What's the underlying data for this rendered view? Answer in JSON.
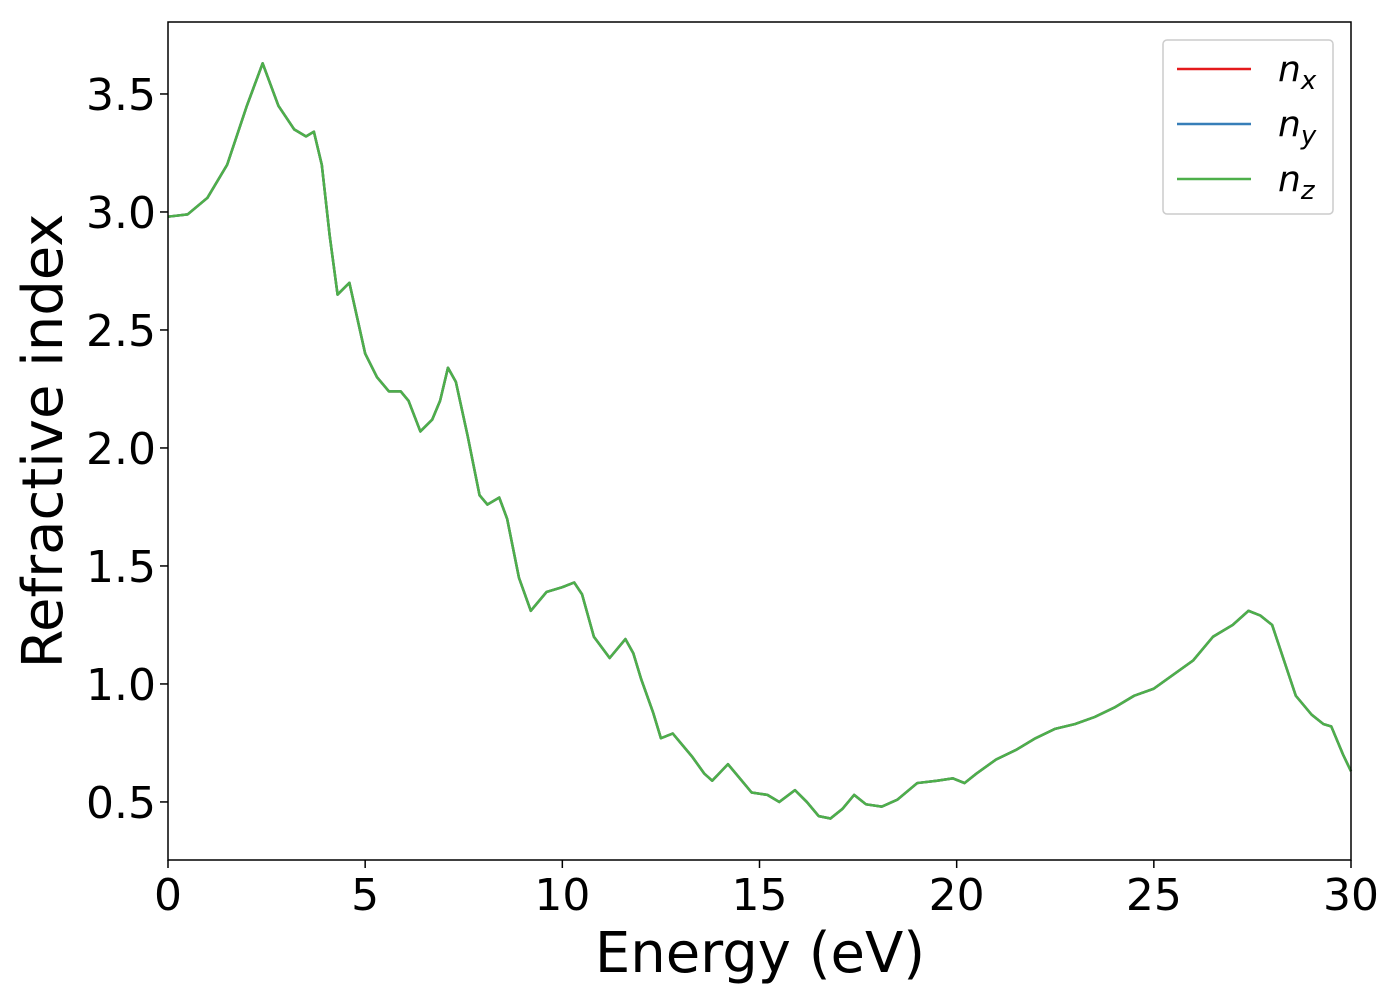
{
  "chart_data": {
    "type": "line",
    "xlabel": "Energy (eV)",
    "ylabel": "Refractive index",
    "x": [
      0,
      0.5,
      1,
      1.5,
      2,
      2.4,
      2.8,
      3.2,
      3.5,
      3.7,
      3.9,
      4.1,
      4.3,
      4.6,
      4.8,
      5.0,
      5.3,
      5.6,
      5.9,
      6.1,
      6.4,
      6.7,
      6.9,
      7.1,
      7.3,
      7.6,
      7.9,
      8.1,
      8.4,
      8.6,
      8.9,
      9.2,
      9.6,
      10.0,
      10.3,
      10.5,
      10.8,
      11.2,
      11.6,
      11.8,
      12.0,
      12.3,
      12.5,
      12.8,
      13.0,
      13.3,
      13.6,
      13.8,
      14.2,
      14.5,
      14.8,
      15.2,
      15.5,
      15.9,
      16.2,
      16.5,
      16.8,
      17.1,
      17.4,
      17.7,
      18.1,
      18.5,
      19.0,
      19.5,
      19.9,
      20.2,
      20.5,
      21.0,
      21.5,
      22.0,
      22.5,
      23.0,
      23.5,
      24.0,
      24.5,
      25.0,
      25.5,
      26.0,
      26.5,
      27.0,
      27.4,
      27.7,
      28.0,
      28.3,
      28.6,
      29.0,
      29.3,
      29.5,
      29.8,
      30.0
    ],
    "series": [
      {
        "name": "nx",
        "color": "#e41a1c",
        "values": [
          2.98,
          2.99,
          3.06,
          3.2,
          3.45,
          3.63,
          3.45,
          3.35,
          3.32,
          3.34,
          3.2,
          2.9,
          2.65,
          2.7,
          2.55,
          2.4,
          2.3,
          2.24,
          2.24,
          2.2,
          2.07,
          2.12,
          2.2,
          2.34,
          2.28,
          2.05,
          1.8,
          1.76,
          1.79,
          1.7,
          1.45,
          1.31,
          1.39,
          1.41,
          1.43,
          1.38,
          1.2,
          1.11,
          1.19,
          1.13,
          1.02,
          0.88,
          0.77,
          0.79,
          0.75,
          0.69,
          0.62,
          0.59,
          0.66,
          0.6,
          0.54,
          0.53,
          0.5,
          0.55,
          0.5,
          0.44,
          0.43,
          0.47,
          0.53,
          0.49,
          0.48,
          0.51,
          0.58,
          0.59,
          0.6,
          0.58,
          0.62,
          0.68,
          0.72,
          0.77,
          0.81,
          0.83,
          0.86,
          0.9,
          0.95,
          0.98,
          1.04,
          1.1,
          1.2,
          1.25,
          1.31,
          1.29,
          1.25,
          1.1,
          0.95,
          0.87,
          0.83,
          0.82,
          0.7,
          0.63
        ]
      },
      {
        "name": "ny",
        "color": "#377eb8",
        "values": [
          2.98,
          2.99,
          3.06,
          3.2,
          3.45,
          3.63,
          3.45,
          3.35,
          3.32,
          3.34,
          3.2,
          2.9,
          2.65,
          2.7,
          2.55,
          2.4,
          2.3,
          2.24,
          2.24,
          2.2,
          2.07,
          2.12,
          2.2,
          2.34,
          2.28,
          2.05,
          1.8,
          1.76,
          1.79,
          1.7,
          1.45,
          1.31,
          1.39,
          1.41,
          1.43,
          1.38,
          1.2,
          1.11,
          1.19,
          1.13,
          1.02,
          0.88,
          0.77,
          0.79,
          0.75,
          0.69,
          0.62,
          0.59,
          0.66,
          0.6,
          0.54,
          0.53,
          0.5,
          0.55,
          0.5,
          0.44,
          0.43,
          0.47,
          0.53,
          0.49,
          0.48,
          0.51,
          0.58,
          0.59,
          0.6,
          0.58,
          0.62,
          0.68,
          0.72,
          0.77,
          0.81,
          0.83,
          0.86,
          0.9,
          0.95,
          0.98,
          1.04,
          1.1,
          1.2,
          1.25,
          1.31,
          1.29,
          1.25,
          1.1,
          0.95,
          0.87,
          0.83,
          0.82,
          0.7,
          0.63
        ]
      },
      {
        "name": "nz",
        "color": "#4daf4a",
        "values": [
          2.98,
          2.99,
          3.06,
          3.2,
          3.45,
          3.63,
          3.45,
          3.35,
          3.32,
          3.34,
          3.2,
          2.9,
          2.65,
          2.7,
          2.55,
          2.4,
          2.3,
          2.24,
          2.24,
          2.2,
          2.07,
          2.12,
          2.2,
          2.34,
          2.28,
          2.05,
          1.8,
          1.76,
          1.79,
          1.7,
          1.45,
          1.31,
          1.39,
          1.41,
          1.43,
          1.38,
          1.2,
          1.11,
          1.19,
          1.13,
          1.02,
          0.88,
          0.77,
          0.79,
          0.75,
          0.69,
          0.62,
          0.59,
          0.66,
          0.6,
          0.54,
          0.53,
          0.5,
          0.55,
          0.5,
          0.44,
          0.43,
          0.47,
          0.53,
          0.49,
          0.48,
          0.51,
          0.58,
          0.59,
          0.6,
          0.58,
          0.62,
          0.68,
          0.72,
          0.77,
          0.81,
          0.83,
          0.86,
          0.9,
          0.95,
          0.98,
          1.04,
          1.1,
          1.2,
          1.25,
          1.31,
          1.29,
          1.25,
          1.1,
          0.95,
          0.87,
          0.83,
          0.82,
          0.7,
          0.63
        ]
      }
    ],
    "xlim": [
      0,
      30
    ],
    "xticks": [
      0,
      5,
      10,
      15,
      20,
      25,
      30
    ],
    "ylim": [
      0.254,
      3.805
    ],
    "yticks": [
      0.5,
      {
        "value": 1.0,
        "label": "1.0"
      },
      1.5,
      {
        "value": 2.0,
        "label": "2.0"
      },
      2.5,
      {
        "value": 3.0,
        "label": "3.0"
      },
      3.5
    ],
    "grid": false,
    "legend": "upper right"
  }
}
